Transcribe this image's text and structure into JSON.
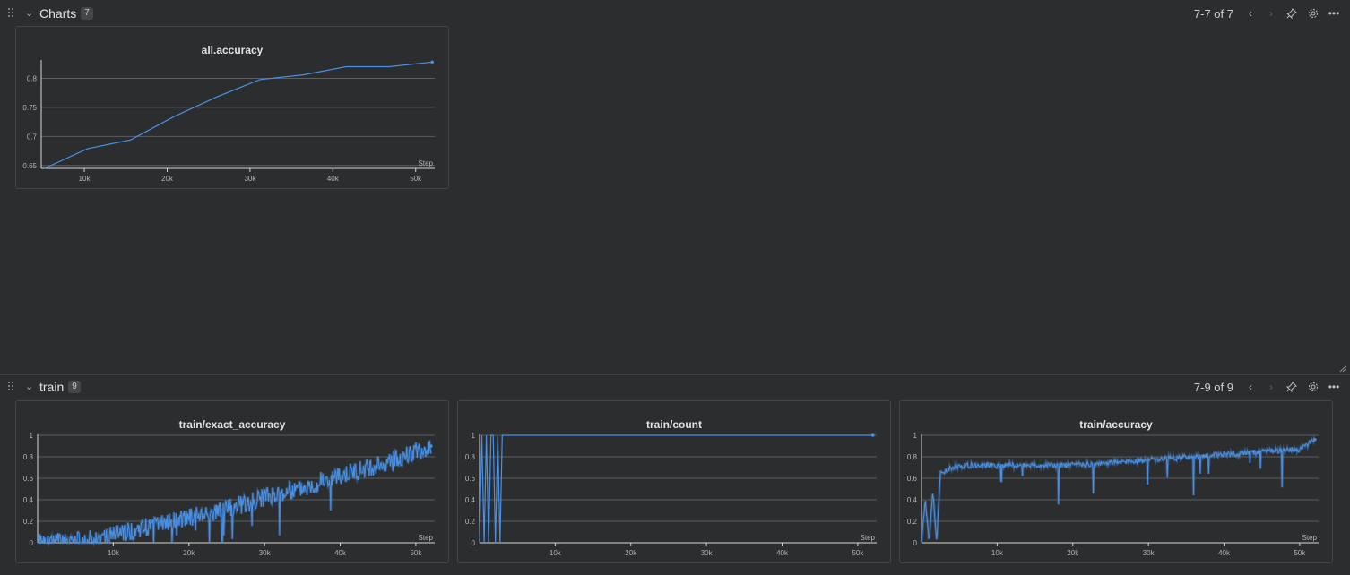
{
  "colors": {
    "line": "#4a90e2",
    "band": "#4a90e2",
    "grid": "#5c5d60",
    "axis": "#d7d7d7",
    "tick": "#b5b5b5"
  },
  "sections": [
    {
      "title": "Charts",
      "count": "7",
      "pager": "7-7 of 7"
    },
    {
      "title": "train",
      "count": "9",
      "pager": "7-9 of 9"
    }
  ],
  "icons": {
    "prev": "chevron-left-icon",
    "next": "chevron-right-icon",
    "pin": "pin-icon",
    "settings": "gear-icon",
    "more": "more-icon",
    "collapse": "chevron-down-icon",
    "drag": "drag-handle-icon"
  },
  "chart_data": [
    {
      "type": "line",
      "title": "all.accuracy",
      "xlabel": "Step",
      "xlim": [
        4800,
        52300
      ],
      "ylim": [
        0.645,
        0.83
      ],
      "xticks": [
        10000,
        20000,
        30000,
        40000,
        50000
      ],
      "xtick_labels": [
        "10k",
        "20k",
        "30k",
        "40k",
        "50k"
      ],
      "yticks": [
        0.65,
        0.7,
        0.75,
        0.8
      ],
      "ytick_labels": [
        "0.65",
        "0.7",
        "0.75",
        "0.8"
      ],
      "series": [
        {
          "x": [
            5200,
            10400,
            15600,
            20800,
            26000,
            31200,
            36400,
            41600,
            46800,
            52000
          ],
          "y": [
            0.645,
            0.679,
            0.694,
            0.734,
            0.768,
            0.798,
            0.806,
            0.82,
            0.82,
            0.828
          ]
        }
      ]
    },
    {
      "type": "line",
      "title": "train/exact_accuracy",
      "xlabel": "Step",
      "xlim": [
        0,
        52500
      ],
      "ylim": [
        0,
        1
      ],
      "xticks": [
        10000,
        20000,
        30000,
        40000,
        50000
      ],
      "xtick_labels": [
        "10k",
        "20k",
        "30k",
        "40k",
        "50k"
      ],
      "yticks": [
        0,
        0.2,
        0.4,
        0.6,
        0.8,
        1
      ],
      "ytick_labels": [
        "0",
        "0.2",
        "0.4",
        "0.6",
        "0.8",
        "1"
      ],
      "series": [
        {
          "x": [
            0,
            3000,
            6000,
            8000,
            10000,
            12000,
            14000,
            16000,
            18000,
            20000,
            22000,
            24000,
            26000,
            28000,
            30000,
            32000,
            34000,
            36000,
            38000,
            40000,
            42000,
            44000,
            46000,
            48000,
            50000,
            52000
          ],
          "y": [
            0,
            0,
            0.02,
            0.04,
            0.07,
            0.1,
            0.14,
            0.17,
            0.2,
            0.23,
            0.27,
            0.3,
            0.34,
            0.38,
            0.42,
            0.46,
            0.5,
            0.54,
            0.58,
            0.62,
            0.66,
            0.7,
            0.75,
            0.8,
            0.85,
            0.9
          ]
        }
      ]
    },
    {
      "type": "line",
      "title": "train/count",
      "xlabel": "Step",
      "xlim": [
        0,
        52500
      ],
      "ylim": [
        0,
        1
      ],
      "xticks": [
        10000,
        20000,
        30000,
        40000,
        50000
      ],
      "xtick_labels": [
        "10k",
        "20k",
        "30k",
        "40k",
        "50k"
      ],
      "yticks": [
        0,
        0.2,
        0.4,
        0.6,
        0.8,
        1
      ],
      "ytick_labels": [
        "0",
        "0.2",
        "0.4",
        "0.6",
        "0.8",
        "1"
      ],
      "series": [
        {
          "x": [
            0,
            300,
            600,
            900,
            1200,
            1500,
            1800,
            2100,
            2400,
            2700,
            3000,
            52000
          ],
          "y": [
            0,
            1,
            0,
            1,
            0,
            1,
            1,
            0,
            1,
            0,
            1,
            1
          ]
        }
      ]
    },
    {
      "type": "line",
      "title": "train/accuracy",
      "xlabel": "Step",
      "xlim": [
        0,
        52500
      ],
      "ylim": [
        0,
        1
      ],
      "xticks": [
        10000,
        20000,
        30000,
        40000,
        50000
      ],
      "xtick_labels": [
        "10k",
        "20k",
        "30k",
        "40k",
        "50k"
      ],
      "yticks": [
        0,
        0.2,
        0.4,
        0.6,
        0.8,
        1
      ],
      "ytick_labels": [
        "0",
        "0.2",
        "0.4",
        "0.6",
        "0.8",
        "1"
      ],
      "series": [
        {
          "x": [
            0,
            500,
            1000,
            1500,
            2000,
            2500,
            3000,
            4000,
            6000,
            10000,
            14000,
            18000,
            22000,
            26000,
            30000,
            34000,
            38000,
            42000,
            46000,
            50000,
            52000
          ],
          "y": [
            0,
            0.4,
            0,
            0.5,
            0,
            0.65,
            0.66,
            0.7,
            0.72,
            0.72,
            0.72,
            0.72,
            0.73,
            0.75,
            0.77,
            0.79,
            0.81,
            0.83,
            0.85,
            0.87,
            0.96
          ]
        }
      ]
    }
  ]
}
